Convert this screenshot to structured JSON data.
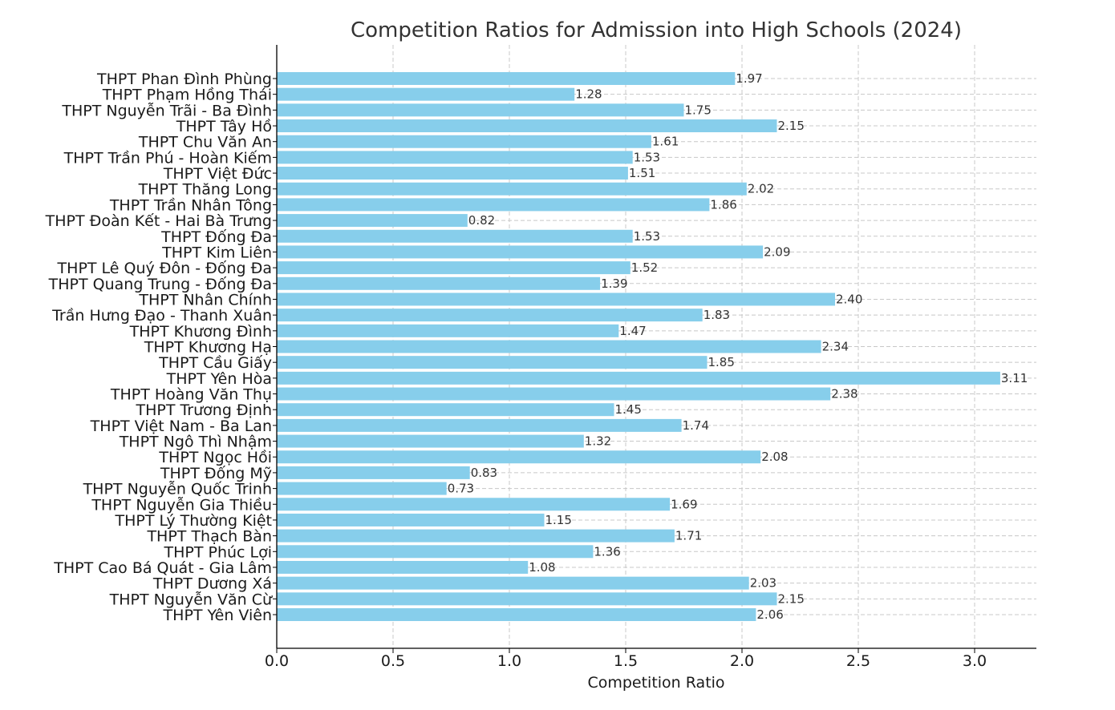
{
  "chart_data": {
    "type": "bar",
    "orientation": "horizontal",
    "title": "Competition Ratios for Admission into High Schools (2024)",
    "xlabel": "Competition Ratio",
    "ylabel": "",
    "xlim": [
      0,
      3.27
    ],
    "xticks": [
      "0.0",
      "0.5",
      "1.0",
      "1.5",
      "2.0",
      "2.5",
      "3.0"
    ],
    "grid": true,
    "bar_color": "#87CEEB",
    "categories": [
      "THPT Phan Đình Phùng",
      "THPT Phạm Hồng Thái",
      "THPT Nguyễn Trãi - Ba Đình",
      "THPT Tây Hồ",
      "THPT Chu Văn An",
      "THPT Trần Phú - Hoàn Kiếm",
      "THPT Việt Đức",
      "THPT Thăng Long",
      "THPT Trần Nhân Tông",
      "THPT Đoàn Kết - Hai Bà Trưng",
      "THPT Đống Đa",
      "THPT Kim Liên",
      "THPT Lê Quý Đôn - Đống Đa",
      "THPT Quang Trung - Đống Đa",
      "THPT Nhân Chính",
      "Trần Hưng Đạo - Thanh Xuân",
      "THPT Khương Đình",
      "THPT Khương Hạ",
      "THPT Cầu Giấy",
      "THPT Yên Hòa",
      "THPT Hoàng Văn Thụ",
      "THPT Trương Định",
      "THPT Việt Nam - Ba Lan",
      "THPT Ngô Thì Nhậm",
      "THPT Ngọc Hồi",
      "THPT Đống Mỹ",
      "THPT Nguyễn Quốc Trinh",
      "THPT Nguyễn Gia Thiều",
      "THPT Lý Thường Kiệt",
      "THPT Thạch Bàn",
      "THPT Phúc Lợi",
      "THPT Cao Bá Quát - Gia Lâm",
      "THPT Dương Xá",
      "THPT Nguyễn Văn Cừ",
      "THPT Yên Viên"
    ],
    "values": [
      1.97,
      1.28,
      1.75,
      2.15,
      1.61,
      1.53,
      1.51,
      2.02,
      1.86,
      0.82,
      1.53,
      2.09,
      1.52,
      1.39,
      2.4,
      1.83,
      1.47,
      2.34,
      1.85,
      3.11,
      2.38,
      1.45,
      1.74,
      1.32,
      2.08,
      0.83,
      0.73,
      1.69,
      1.15,
      1.71,
      1.36,
      1.08,
      2.03,
      2.15,
      2.06
    ],
    "value_labels": [
      "1.97",
      "1.28",
      "1.75",
      "2.15",
      "1.61",
      "1.53",
      "1.51",
      "2.02",
      "1.86",
      "0.82",
      "1.53",
      "2.09",
      "1.52",
      "1.39",
      "2.40",
      "1.83",
      "1.47",
      "2.34",
      "1.85",
      "3.11",
      "2.38",
      "1.45",
      "1.74",
      "1.32",
      "2.08",
      "0.83",
      "0.73",
      "1.69",
      "1.15",
      "1.71",
      "1.36",
      "1.08",
      "2.03",
      "2.15",
      "2.06"
    ]
  }
}
